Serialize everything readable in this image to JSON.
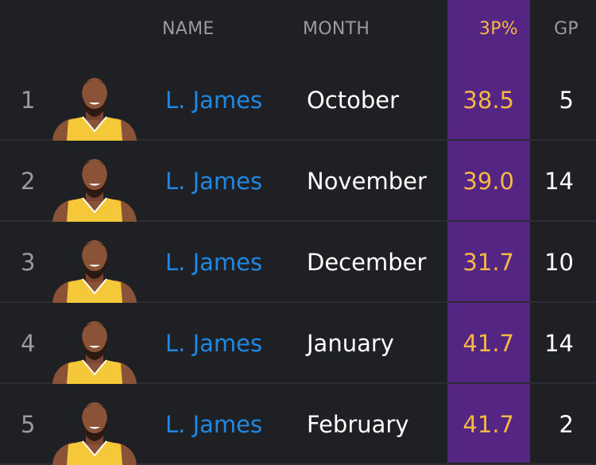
{
  "colors": {
    "background": "#1f2024",
    "highlight_column": "#552583",
    "highlight_text": "#f5b840",
    "name_link": "#1e88e5"
  },
  "header": {
    "name": "NAME",
    "month": "MONTH",
    "pct": "3P%",
    "gp": "GP"
  },
  "rows": [
    {
      "rank": "1",
      "name": "L. James",
      "month": "October",
      "pct": "38.5",
      "gp": "5",
      "avatar": "player-headshot"
    },
    {
      "rank": "2",
      "name": "L. James",
      "month": "November",
      "pct": "39.0",
      "gp": "14",
      "avatar": "player-headshot"
    },
    {
      "rank": "3",
      "name": "L. James",
      "month": "December",
      "pct": "31.7",
      "gp": "10",
      "avatar": "player-headshot"
    },
    {
      "rank": "4",
      "name": "L. James",
      "month": "January",
      "pct": "41.7",
      "gp": "14",
      "avatar": "player-headshot"
    },
    {
      "rank": "5",
      "name": "L. James",
      "month": "February",
      "pct": "41.7",
      "gp": "2",
      "avatar": "player-headshot"
    }
  ]
}
